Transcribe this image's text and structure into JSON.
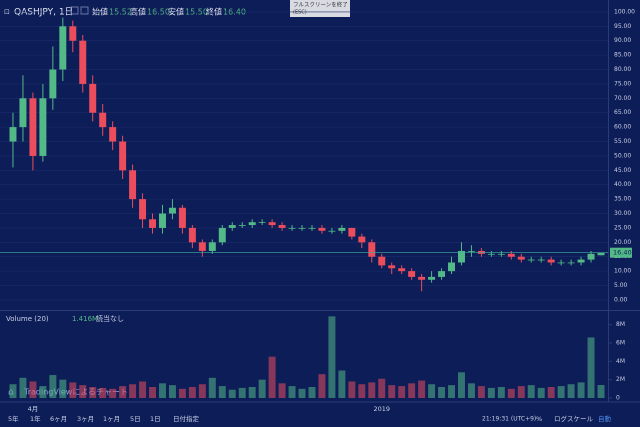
{
  "header": {
    "symbol": "QASHJPY, 1日",
    "ohlc": [
      {
        "label": "始値",
        "value": "15.52"
      },
      {
        "label": "高値",
        "value": "16.50"
      },
      {
        "label": "安値",
        "value": "15.50"
      },
      {
        "label": "終値",
        "value": "16.40"
      }
    ]
  },
  "fullscreen": {
    "label": "フルスクリーンを終了",
    "hint": "(ESC)"
  },
  "watermark": "TradingViewによるチャート",
  "toolbar": {
    "ranges": [
      "5年",
      "1年",
      "6ヶ月",
      "3ヶ月",
      "1ヶ月",
      "5日",
      "1日",
      "日付指定"
    ],
    "clock": "21:19:31 (UTC+9)",
    "percent": "%",
    "log": "ログスケール",
    "auto": "自動"
  },
  "chart_data": {
    "type": "candlestick",
    "categories": [
      null,
      null,
      "4月",
      null,
      null,
      null,
      null,
      null,
      null,
      null,
      null,
      null,
      null,
      null,
      null,
      null,
      null,
      null,
      null,
      null,
      null,
      null,
      null,
      null,
      null,
      null,
      null,
      null,
      null,
      null,
      null,
      null,
      null,
      null,
      null,
      null,
      null,
      "2019",
      null,
      null,
      null,
      null,
      null,
      null,
      null,
      null,
      null,
      null,
      null,
      null,
      null,
      null,
      null,
      null,
      null,
      null,
      null,
      null,
      null,
      null
    ],
    "open": [
      55,
      60,
      70,
      50,
      70,
      80,
      95,
      90,
      75,
      65,
      60,
      55,
      45,
      35,
      28,
      25,
      30,
      32,
      25,
      20,
      17,
      20,
      25,
      26,
      26,
      27,
      27,
      26,
      25,
      25,
      25,
      25,
      24,
      24,
      25,
      22,
      20,
      15,
      12,
      11,
      10,
      8,
      7,
      8,
      10,
      13,
      17,
      17,
      16,
      16,
      16,
      15,
      14,
      14,
      14,
      13,
      13,
      13,
      14,
      15.52
    ],
    "high": [
      65,
      78,
      72,
      75,
      88,
      98,
      97,
      92,
      78,
      68,
      62,
      57,
      47,
      37,
      30,
      33,
      35,
      33,
      26,
      21,
      21,
      26,
      27,
      27,
      28,
      28,
      28,
      27,
      26,
      26,
      26,
      26,
      25,
      26,
      25,
      23,
      21,
      16,
      13,
      12,
      11,
      9,
      10,
      11,
      15,
      20,
      19,
      18,
      17,
      17,
      17,
      16,
      15,
      15,
      15,
      14,
      14,
      15,
      17,
      16.5
    ],
    "low": [
      46,
      55,
      45,
      48,
      66,
      76,
      86,
      72,
      62,
      57,
      52,
      42,
      32,
      25,
      23,
      23,
      28,
      23,
      18,
      15,
      16,
      19,
      24,
      25,
      25,
      26,
      25,
      24,
      24,
      24,
      24,
      23,
      23,
      23,
      21,
      18,
      13,
      11,
      9,
      9,
      7,
      3,
      6,
      7,
      9,
      12,
      15,
      15,
      15,
      15,
      14,
      13,
      13,
      13,
      12,
      12,
      12,
      12,
      13,
      15.5
    ],
    "close": [
      60,
      70,
      50,
      70,
      80,
      95,
      90,
      75,
      65,
      60,
      55,
      45,
      35,
      28,
      25,
      30,
      32,
      25,
      20,
      17,
      20,
      25,
      26,
      26,
      27,
      27,
      26,
      25,
      25,
      25,
      25,
      24,
      24,
      25,
      22,
      20,
      15,
      12,
      11,
      10,
      8,
      7,
      8,
      10,
      13,
      17,
      17,
      16,
      16,
      16,
      15,
      14,
      14,
      14,
      13,
      13,
      13,
      14,
      16,
      16.4
    ],
    "up_color": "#53b987",
    "down_color": "#eb4d5c",
    "ylim": [
      -2.8,
      102.4
    ],
    "yticks": [
      {
        "value": 0,
        "label": "0.00"
      },
      {
        "value": 5,
        "label": "5.00"
      },
      {
        "value": 10,
        "label": "10.00"
      },
      {
        "value": 15,
        "label": "15.00"
      },
      {
        "value": 20,
        "label": "20.00"
      },
      {
        "value": 25,
        "label": "25.00"
      },
      {
        "value": 30,
        "label": "30.00"
      },
      {
        "value": 35,
        "label": "35.00"
      },
      {
        "value": 40,
        "label": "40.00"
      },
      {
        "value": 45,
        "label": "45.00"
      },
      {
        "value": 50,
        "label": "50.00"
      },
      {
        "value": 55,
        "label": "55.00"
      },
      {
        "value": 60,
        "label": "60.00"
      },
      {
        "value": 65,
        "label": "65.00"
      },
      {
        "value": 70,
        "label": "70.00"
      },
      {
        "value": 75,
        "label": "75.00"
      },
      {
        "value": 80,
        "label": "80.00"
      },
      {
        "value": 85,
        "label": "85.00"
      },
      {
        "value": 90,
        "label": "90.00"
      },
      {
        "value": 95,
        "label": "95.00"
      },
      {
        "value": 100,
        "label": "100.00"
      }
    ],
    "grid": true,
    "last_value": {
      "value": 16.4,
      "label": "16.40"
    },
    "volume": {
      "title": "Volume (20)",
      "last": "1.416M",
      "note": "読当なし",
      "values": [
        1500000,
        2200000,
        1800000,
        1300000,
        2500000,
        2000000,
        1700000,
        1400000,
        1200000,
        1100000,
        1000000,
        1300000,
        1500000,
        1800000,
        1200000,
        1600000,
        1400000,
        1000000,
        1200000,
        1500000,
        2200000,
        1300000,
        900000,
        1100000,
        1200000,
        2000000,
        4500000,
        1600000,
        1300000,
        1000000,
        1200000,
        2600000,
        8900000,
        3000000,
        1800000,
        1500000,
        1700000,
        2100000,
        1400000,
        1300000,
        1600000,
        1900000,
        1500000,
        1200000,
        1400000,
        2800000,
        1600000,
        1300000,
        1100000,
        1200000,
        1000000,
        1300000,
        1400000,
        1100000,
        1200000,
        1300000,
        1500000,
        1700000,
        6600000,
        1416000
      ],
      "ylim": [
        0,
        9200000
      ],
      "yticks": [
        0,
        {
          "value": 2000000,
          "label": "2M"
        },
        {
          "value": 4000000,
          "label": "4M"
        },
        {
          "value": 6000000,
          "label": "6M"
        },
        {
          "value": 8000000,
          "label": "8M"
        }
      ]
    }
  }
}
